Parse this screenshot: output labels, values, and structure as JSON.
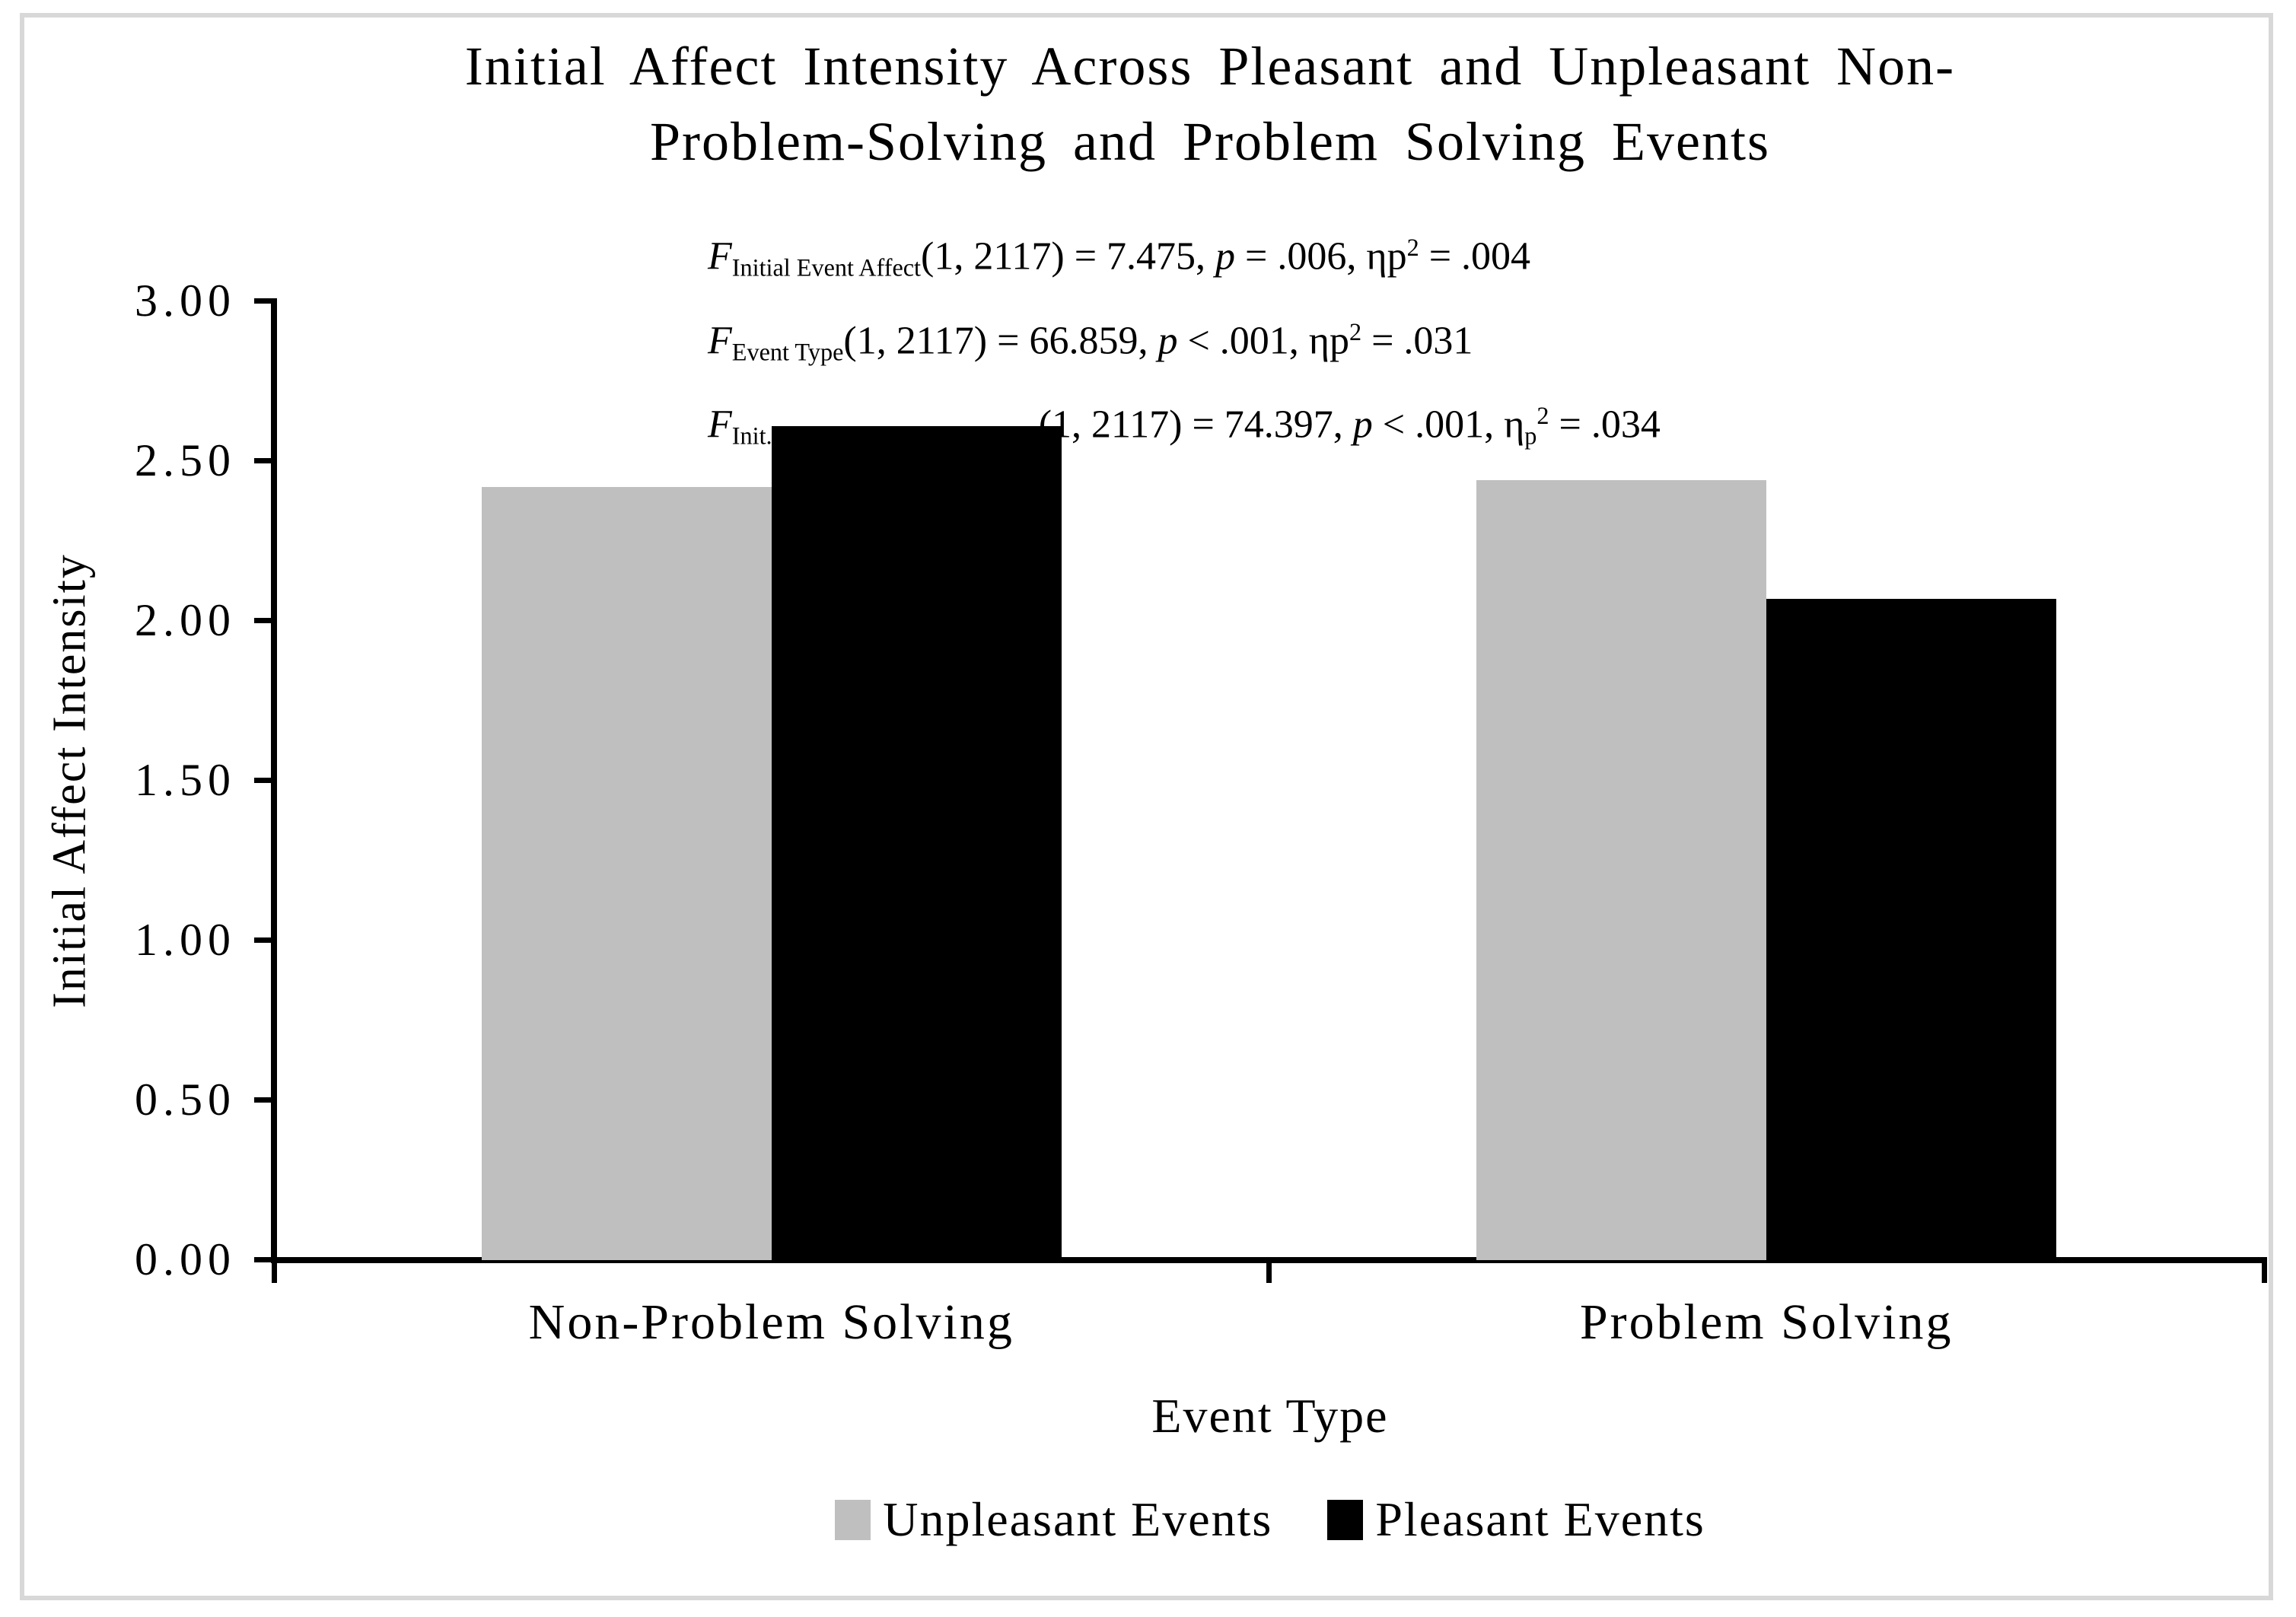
{
  "chart_data": {
    "type": "bar",
    "title": "Initial Affect Intensity Across Pleasant and Unpleasant Non-Problem-Solving and Problem Solving Events",
    "title_lines": [
      "Initial Affect Intensity Across Pleasant and Unpleasant Non-",
      "Problem-Solving and Problem Solving Events"
    ],
    "xlabel": "Event Type",
    "ylabel": "Initial Affect Intensity",
    "categories": [
      "Non-Problem Solving",
      "Problem Solving"
    ],
    "series": [
      {
        "name": "Unpleasant Events",
        "color": "#bfbfbf",
        "values": [
          2.42,
          2.44
        ]
      },
      {
        "name": "Pleasant Events",
        "color": "#000000",
        "values": [
          2.61,
          2.07
        ]
      }
    ],
    "ylim": [
      0,
      3
    ],
    "ytick_step": 0.5,
    "yticks": [
      {
        "v": 0.0,
        "label": "0.00"
      },
      {
        "v": 0.5,
        "label": "0.50"
      },
      {
        "v": 1.0,
        "label": "1.00"
      },
      {
        "v": 1.5,
        "label": "1.50"
      },
      {
        "v": 2.0,
        "label": "2.00"
      },
      {
        "v": 2.5,
        "label": "2.50"
      },
      {
        "v": 3.0,
        "label": "3.00"
      }
    ],
    "grid": false,
    "legend_position": "bottom",
    "annotations": [
      {
        "segments": [
          {
            "t": "F",
            "s": "i"
          },
          {
            "t": "Initial Event Affect",
            "s": "sub"
          },
          {
            "t": "(1, 2117) = 7.475, ",
            "s": "n"
          },
          {
            "t": "p",
            "s": "i"
          },
          {
            "t": " = .006, ηp",
            "s": "n"
          },
          {
            "t": "2",
            "s": "sup"
          },
          {
            "t": " = .004",
            "s": "n"
          }
        ]
      },
      {
        "segments": [
          {
            "t": "F",
            "s": "i"
          },
          {
            "t": "Event Type",
            "s": "sub"
          },
          {
            "t": "(1, 2117) = 66.859, ",
            "s": "n"
          },
          {
            "t": "p",
            "s": "i"
          },
          {
            "t": " < .001, ηp",
            "s": "n"
          },
          {
            "t": "2",
            "s": "sup"
          },
          {
            "t": " = .031",
            "s": "n"
          }
        ]
      },
      {
        "segments": [
          {
            "t": "F",
            "s": "i"
          },
          {
            "t": "Init. Event Affect x Event Type",
            "s": "sub"
          },
          {
            "t": "(1, 2117) = 74.397, ",
            "s": "n"
          },
          {
            "t": "p",
            "s": "i"
          },
          {
            "t": " < .001, η",
            "s": "n"
          },
          {
            "t": "p",
            "s": "sub"
          },
          {
            "t": "2",
            "s": "sup"
          },
          {
            "t": " = .034",
            "s": "n"
          }
        ]
      }
    ]
  },
  "frame_color": "#d8d8d8",
  "axis_color": "#000000"
}
